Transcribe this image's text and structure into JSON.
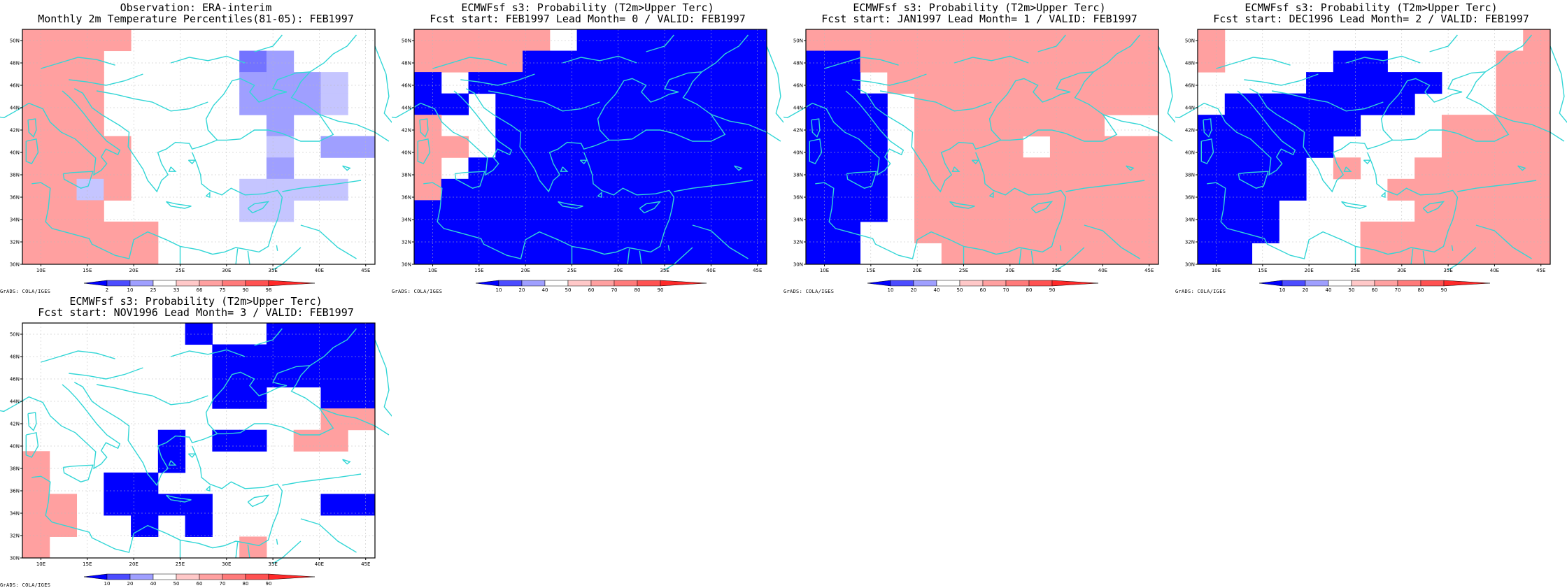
{
  "lon_ticks": [
    "10E",
    "15E",
    "20E",
    "25E",
    "30E",
    "35E",
    "40E",
    "45E"
  ],
  "lat_ticks": [
    "30N",
    "32N",
    "34N",
    "36N",
    "38N",
    "40N",
    "42N",
    "44N",
    "46N",
    "48N",
    "50N"
  ],
  "credit": "GrADS: COLA/IGES",
  "colors": {
    "coast": "#33d6d6",
    "blue": [
      "#0000ff",
      "#2626ff",
      "#4c4cff",
      "#7373ff",
      "#9f9fff",
      "#c5c5ff"
    ],
    "red": [
      "#ffc8c8",
      "#ffa0a0",
      "#ff7a7a",
      "#ff5252",
      "#ff2a2a",
      "#ff0000"
    ],
    "grid": "#bbbbbb"
  },
  "colorbars": {
    "obs": {
      "labels": [
        "2",
        "10",
        "25",
        "33",
        "66",
        "75",
        "90",
        "98"
      ]
    },
    "prob": {
      "labels": [
        "10",
        "20",
        "40",
        "50",
        "60",
        "70",
        "80",
        "90"
      ]
    }
  },
  "panels": [
    {
      "title1": "Observation: ERA-interim",
      "title2": "Monthly 2m Temperature Percentiles(81-05): FEB1997",
      "colorbar": "obs",
      "grid": [
        "RRRR.........",
        "RRR.....12....",
        "RRR.....2223..",
        "RRR.....2223..",
        "RRR......2...",
        "RRRR.....3.22",
        "RRRR.....2...",
        "RR3R....3333.",
        "RRR.....33...",
        "RRRRR........",
        "RRRRR........"
      ]
    },
    {
      "title1": "ECMWFsf s3: Probability (T2m>Upper Terc)",
      "title2": "Fcst start: FEB1997  Lead Month= 0 / VALID: FEB1997",
      "colorbar": "prob",
      "grid": [
        "RRRRR.BBBBBBB",
        "RRRRBBBBBBBBB",
        "B.BBBBBBBBBBB",
        "BB.BBBBBBBBBB",
        "R..BBBBBBBBBB",
        "RR.BBBBBBBBBB",
        "R.BBBBBBBBBBB",
        "RBBBBBBBBBBBB",
        "BBBBBBBBBBBBB",
        "BBBBBBBBBBBBB",
        "BBBBBBBBBBBBB"
      ]
    },
    {
      "title1": "ECMWFsf s3: Probability (T2m>Upper Terc)",
      "title2": "Fcst start: JAN1997  Lead Month= 1 / VALID: FEB1997",
      "colorbar": "prob",
      "grid": [
        "RRRRRRRRRRRRR",
        "BBRRRRRRRRRRR",
        "BB.RRRRRRRRRR",
        "BBB.RRRRRRRRR",
        "BBB.RRRRRRR..",
        "BBB.RRRR.RRRR",
        "BBB.RRRRRRRRR",
        "BBB.RRRRRRRRR",
        "BBB.RRRRRRRRR",
        "BB..RRRRRRRRR",
        "BB...RRRRRRRR"
      ]
    },
    {
      "title1": "ECMWFsf s3: Probability (T2m>Upper Terc)",
      "title2": "Fcst start: DEC1996  Lead Month= 2 / VALID: FEB1997",
      "colorbar": "prob",
      "grid": [
        "R...........R",
        "R....BB....RR",
        "....BBBBB..RR",
        ".BBBBBBB...RR",
        "BBBBBB...RRRR",
        "BBBBB....RRRR",
        "BBBB.R..RRRRR",
        "BBBB...RRRRRR",
        "BBB.....RRRRR",
        "BBB...RRRRRRR",
        "BB....RRRRRRR"
      ]
    },
    {
      "title1": "ECMWFsf s3: Probability (T2m>Upper Terc)",
      "title2": "Fcst start: NOV1996  Lead Month= 3 / VALID: FEB1997",
      "colorbar": "prob",
      "grid": [
        "......B..BBBB",
        ".......BBBBBB",
        ".......BBBBBB",
        ".......BB..BB",
        "...........RR",
        ".....B.BB.RR.",
        "R....B.......",
        "R..BB........",
        "RR.BBBB....BB",
        "RR..B.B......",
        "R.......R...."
      ]
    }
  ]
}
